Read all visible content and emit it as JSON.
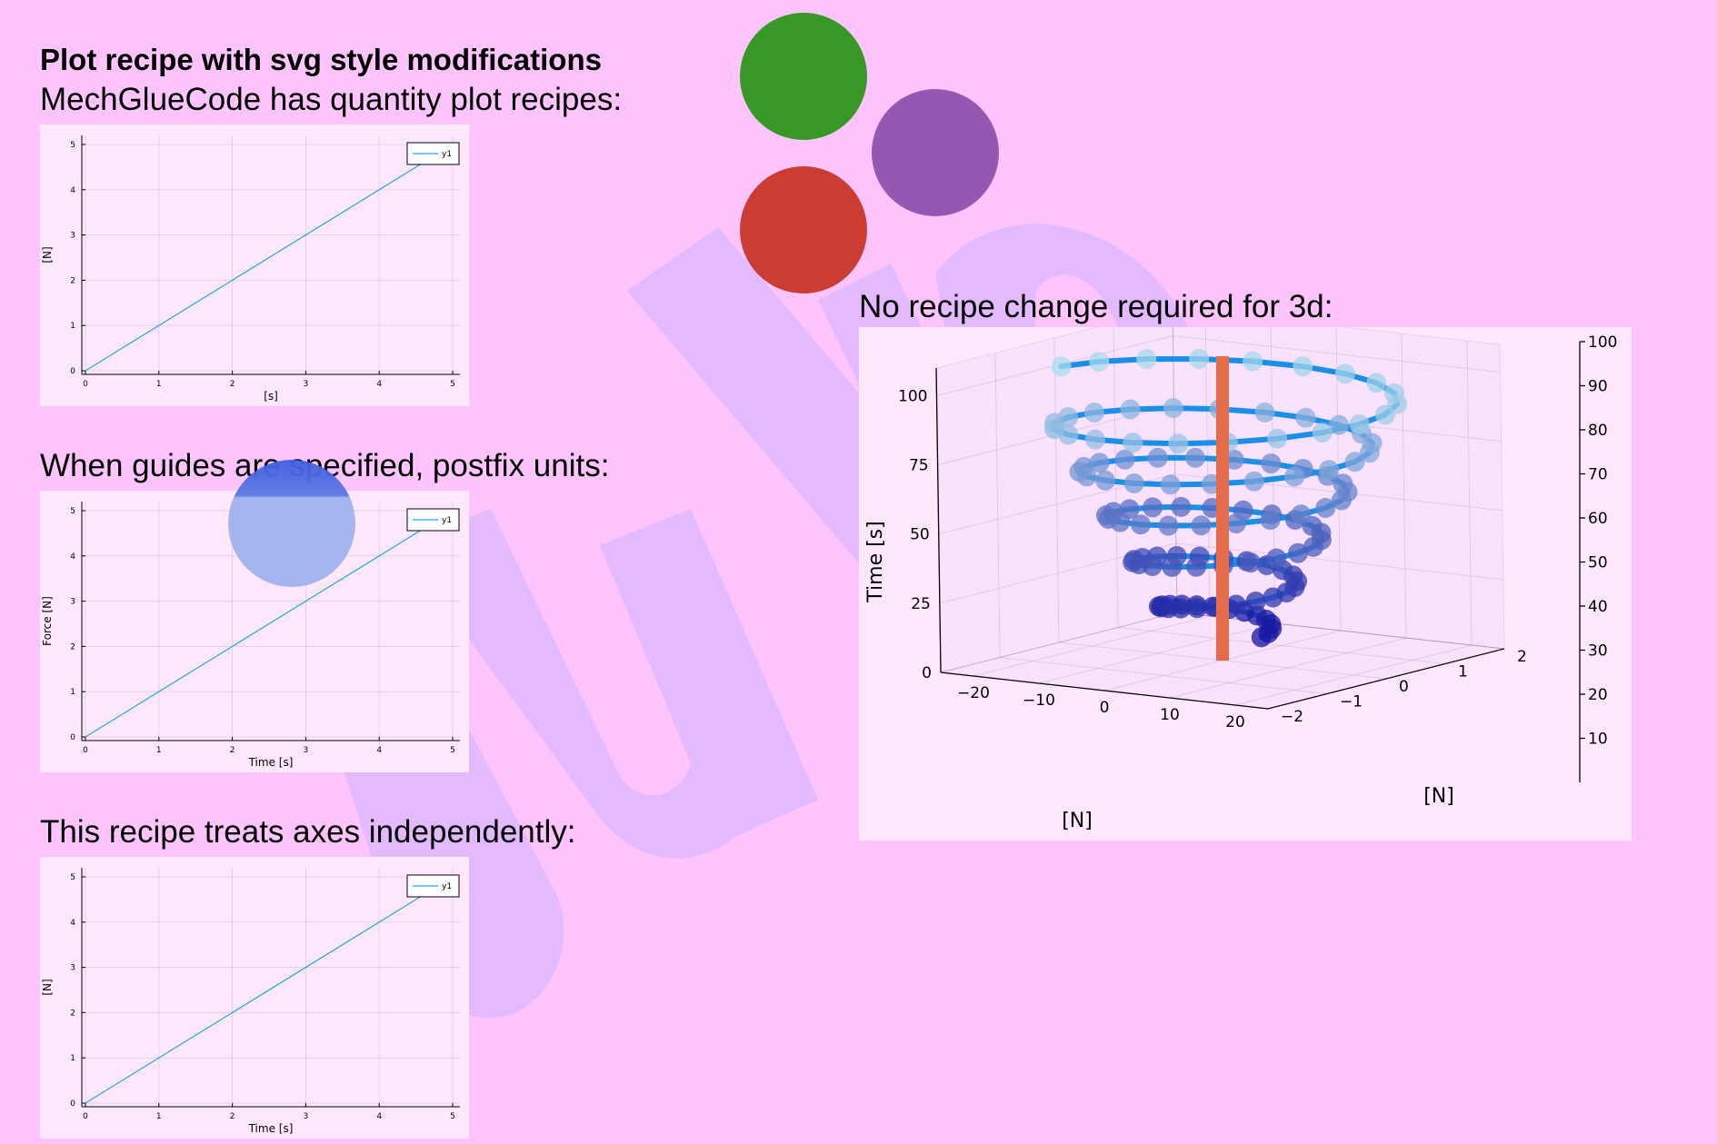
{
  "page": {
    "title": "Plot recipe with svg style modifications",
    "colors": {
      "background": "#fdc4fd",
      "panel": "#ffe8fc",
      "julia_watermark": "#e3b9ff",
      "line": "#1fa7e8",
      "logo_green": "#389826",
      "logo_purple": "#9558b2",
      "logo_red": "#cb3c33",
      "logo_blue_ghost": "#7b9ee8",
      "bar": "#e46c4a"
    },
    "watermark_text": "julia",
    "logo_icon": "julia-dots-logo"
  },
  "sections": [
    {
      "caption": "MechGlueCode has quantity plot recipes:"
    },
    {
      "caption": "When guides are specified, postfix units:"
    },
    {
      "caption": "This recipe treats axes independently:"
    },
    {
      "caption": "No recipe change required for 3d:"
    }
  ],
  "chart_data": [
    {
      "type": "line",
      "x": [
        0,
        5
      ],
      "y": [
        0,
        5
      ],
      "xlim": [
        0,
        5
      ],
      "ylim": [
        0,
        5
      ],
      "xticks": [
        "0",
        "1",
        "2",
        "3",
        "4",
        "5"
      ],
      "yticks": [
        "0",
        "1",
        "2",
        "3",
        "4",
        "5"
      ],
      "xlabel": "[s]",
      "ylabel": "[N]",
      "series": [
        {
          "name": "y1",
          "color": "#1fa7e8"
        }
      ],
      "legend": "top-right",
      "grid": true
    },
    {
      "type": "line",
      "x": [
        0,
        5
      ],
      "y": [
        0,
        5
      ],
      "xlim": [
        0,
        5
      ],
      "ylim": [
        0,
        5
      ],
      "xticks": [
        "0",
        "1",
        "2",
        "3",
        "4",
        "5"
      ],
      "yticks": [
        "0",
        "1",
        "2",
        "3",
        "4",
        "5"
      ],
      "xlabel": "Time [s]",
      "ylabel": "Force [N]",
      "series": [
        {
          "name": "y1",
          "color": "#1fa7e8"
        }
      ],
      "legend": "top-right",
      "grid": true
    },
    {
      "type": "line",
      "x": [
        0,
        5
      ],
      "y": [
        0,
        5
      ],
      "xlim": [
        0,
        5
      ],
      "ylim": [
        0,
        5
      ],
      "xticks": [
        "0",
        "1",
        "2",
        "3",
        "4",
        "5"
      ],
      "yticks": [
        "0",
        "1",
        "2",
        "3",
        "4",
        "5"
      ],
      "xlabel": "Time [s]",
      "ylabel": "[N]",
      "series": [
        {
          "name": "y1",
          "color": "#1fa7e8"
        }
      ],
      "legend": "top-right",
      "grid": true
    },
    {
      "type": "scatter",
      "dimensions": 3,
      "description_series": "helix",
      "xlim": [
        -25,
        25
      ],
      "ylim": [
        -2,
        2
      ],
      "zlim": [
        0,
        110
      ],
      "xticks": [
        "−20",
        "−10",
        "0",
        "10",
        "20"
      ],
      "yticks": [
        "−2",
        "−1",
        "0",
        "1",
        "2"
      ],
      "zticks": [
        "0",
        "25",
        "50",
        "75",
        "100"
      ],
      "xlabel": "[N]",
      "ylabel": "[N]",
      "zlabel": "Time [s]",
      "colorbar_ticks": [
        "10",
        "20",
        "30",
        "40",
        "50",
        "60",
        "70",
        "80",
        "90",
        "100"
      ],
      "helix": {
        "radius_x": 24,
        "radius_y": 1.8,
        "z_start": 10,
        "z_end": 100,
        "turns": 5.5,
        "points": 120
      },
      "bar": {
        "x": 0,
        "y": 0,
        "z_from": 10,
        "z_to": 100
      },
      "grid": true
    }
  ]
}
